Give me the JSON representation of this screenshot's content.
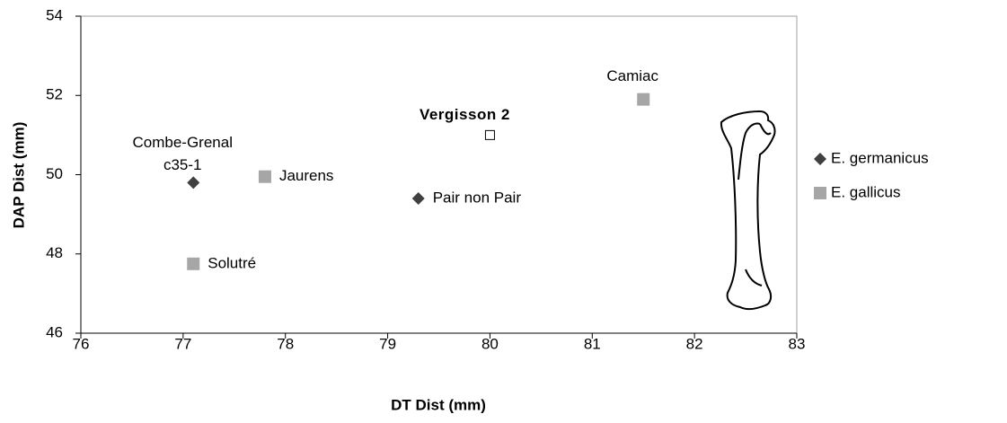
{
  "chart_data": {
    "type": "scatter",
    "x_label": "DT Dist (mm)",
    "y_label": "DAP Dist (mm)",
    "xlim": [
      76,
      83
    ],
    "xticks": [
      76,
      77,
      78,
      79,
      80,
      81,
      82,
      83
    ],
    "ylim": [
      46,
      54
    ],
    "yticks": [
      46,
      48,
      50,
      52,
      54
    ],
    "legend": "right",
    "series": [
      {
        "name": "E. germanicus",
        "color": "#404040",
        "marker": "diamond",
        "x": [
          77.1,
          79.3
        ],
        "values": [
          49.8,
          49.4
        ],
        "labels": [
          [
            "Combe-Grenal",
            "c35-1"
          ],
          [
            "Pair non Pair"
          ]
        ]
      },
      {
        "name": "E. gallicus",
        "color": "#a6a6a6",
        "marker": "square",
        "x": [
          77.8,
          77.1,
          81.5
        ],
        "values": [
          49.95,
          47.75,
          51.9
        ],
        "labels": [
          [
            "Jaurens"
          ],
          [
            "Solutré"
          ],
          [
            "Camiac"
          ]
        ]
      }
    ],
    "annotations": [
      {
        "text": "Vergisson 2",
        "x": 80,
        "y": 51.0
      }
    ]
  }
}
